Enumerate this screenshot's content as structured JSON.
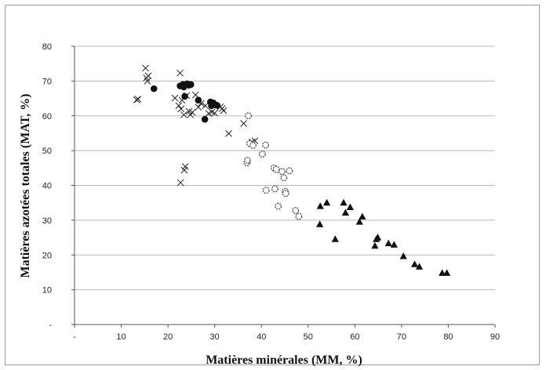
{
  "chart_data": {
    "type": "scatter",
    "title": "",
    "xlabel": "Matières minérales (MM, %)",
    "ylabel": "Matières azotées totales (MAT, %)",
    "xlim": [
      0,
      90
    ],
    "ylim": [
      0,
      80
    ],
    "x_ticks": [
      0,
      10,
      20,
      30,
      40,
      50,
      60,
      70,
      80,
      90
    ],
    "x_tick_labels": [
      "-",
      "10",
      "20",
      "30",
      "40",
      "50",
      "60",
      "70",
      "80",
      "90"
    ],
    "y_ticks": [
      0,
      10,
      20,
      30,
      40,
      50,
      60,
      70,
      80
    ],
    "y_tick_labels": [
      "-",
      "10",
      "20",
      "30",
      "40",
      "50",
      "60",
      "70",
      "80"
    ],
    "grid": "horizontal",
    "legend": "none",
    "series": [
      {
        "marker": "x",
        "color": "#222222",
        "points": [
          [
            13.3,
            64.6
          ],
          [
            13.6,
            64.8
          ],
          [
            15.2,
            73.7
          ],
          [
            15.4,
            70.9
          ],
          [
            15.6,
            70.0
          ],
          [
            15.8,
            71.5
          ],
          [
            21.5,
            65.1
          ],
          [
            22.3,
            62.9
          ],
          [
            22.6,
            72.3
          ],
          [
            22.8,
            62.0
          ],
          [
            23.0,
            64.5
          ],
          [
            23.4,
            60.3
          ],
          [
            23.5,
            44.4
          ],
          [
            23.7,
            45.4
          ],
          [
            22.7,
            40.8
          ],
          [
            24.0,
            65.8
          ],
          [
            24.5,
            61.3
          ],
          [
            24.8,
            60.3
          ],
          [
            25.2,
            61.0
          ],
          [
            25.9,
            66.0
          ],
          [
            26.5,
            62.5
          ],
          [
            27.1,
            63.6
          ],
          [
            28.0,
            62.9
          ],
          [
            28.7,
            60.7
          ],
          [
            29.4,
            61.1
          ],
          [
            30.0,
            60.8
          ],
          [
            31.2,
            62.6
          ],
          [
            31.6,
            62.1
          ],
          [
            31.9,
            61.5
          ],
          [
            33.0,
            54.9
          ],
          [
            36.2,
            57.8
          ],
          [
            38.0,
            52.5
          ],
          [
            38.6,
            52.8
          ]
        ]
      },
      {
        "marker": "filled-circle",
        "color": "#111111",
        "points": [
          [
            17.0,
            67.8
          ],
          [
            22.6,
            68.6
          ],
          [
            23.2,
            69.0
          ],
          [
            23.4,
            68.3
          ],
          [
            23.6,
            65.6
          ],
          [
            24.1,
            69.2
          ],
          [
            24.5,
            68.8
          ],
          [
            24.9,
            69.0
          ],
          [
            26.5,
            64.5
          ],
          [
            27.9,
            59.0
          ],
          [
            29.1,
            64.0
          ],
          [
            29.3,
            62.9
          ],
          [
            29.7,
            63.7
          ],
          [
            30.1,
            63.2
          ],
          [
            30.5,
            63.0
          ]
        ]
      },
      {
        "marker": "open-circle",
        "color": "#555555",
        "points": [
          [
            37.2,
            60.0
          ],
          [
            36.9,
            46.5
          ],
          [
            37.0,
            47.2
          ],
          [
            37.5,
            52.0
          ],
          [
            38.2,
            51.5
          ],
          [
            40.2,
            49.0
          ],
          [
            40.9,
            51.6
          ],
          [
            41.0,
            38.6
          ],
          [
            42.7,
            45.0
          ],
          [
            42.9,
            39.0
          ],
          [
            43.2,
            44.6
          ],
          [
            43.6,
            34.0
          ],
          [
            44.4,
            44.0
          ],
          [
            44.8,
            42.2
          ],
          [
            45.1,
            38.3
          ],
          [
            45.2,
            37.7
          ],
          [
            46.0,
            44.2
          ],
          [
            47.3,
            32.8
          ],
          [
            48.0,
            31.1
          ]
        ]
      },
      {
        "marker": "filled-triangle",
        "color": "#111111",
        "points": [
          [
            52.5,
            28.8
          ],
          [
            52.6,
            34.0
          ],
          [
            54.0,
            35.0
          ],
          [
            55.8,
            24.5
          ],
          [
            57.6,
            35.0
          ],
          [
            58.0,
            32.1
          ],
          [
            59.0,
            33.7
          ],
          [
            61.0,
            29.5
          ],
          [
            61.6,
            31.0
          ],
          [
            64.3,
            22.6
          ],
          [
            64.6,
            24.5
          ],
          [
            64.9,
            25.0
          ],
          [
            67.2,
            23.3
          ],
          [
            68.4,
            22.9
          ],
          [
            70.4,
            19.6
          ],
          [
            72.8,
            17.3
          ],
          [
            73.8,
            16.6
          ],
          [
            78.7,
            14.8
          ],
          [
            79.7,
            14.8
          ]
        ]
      }
    ]
  }
}
